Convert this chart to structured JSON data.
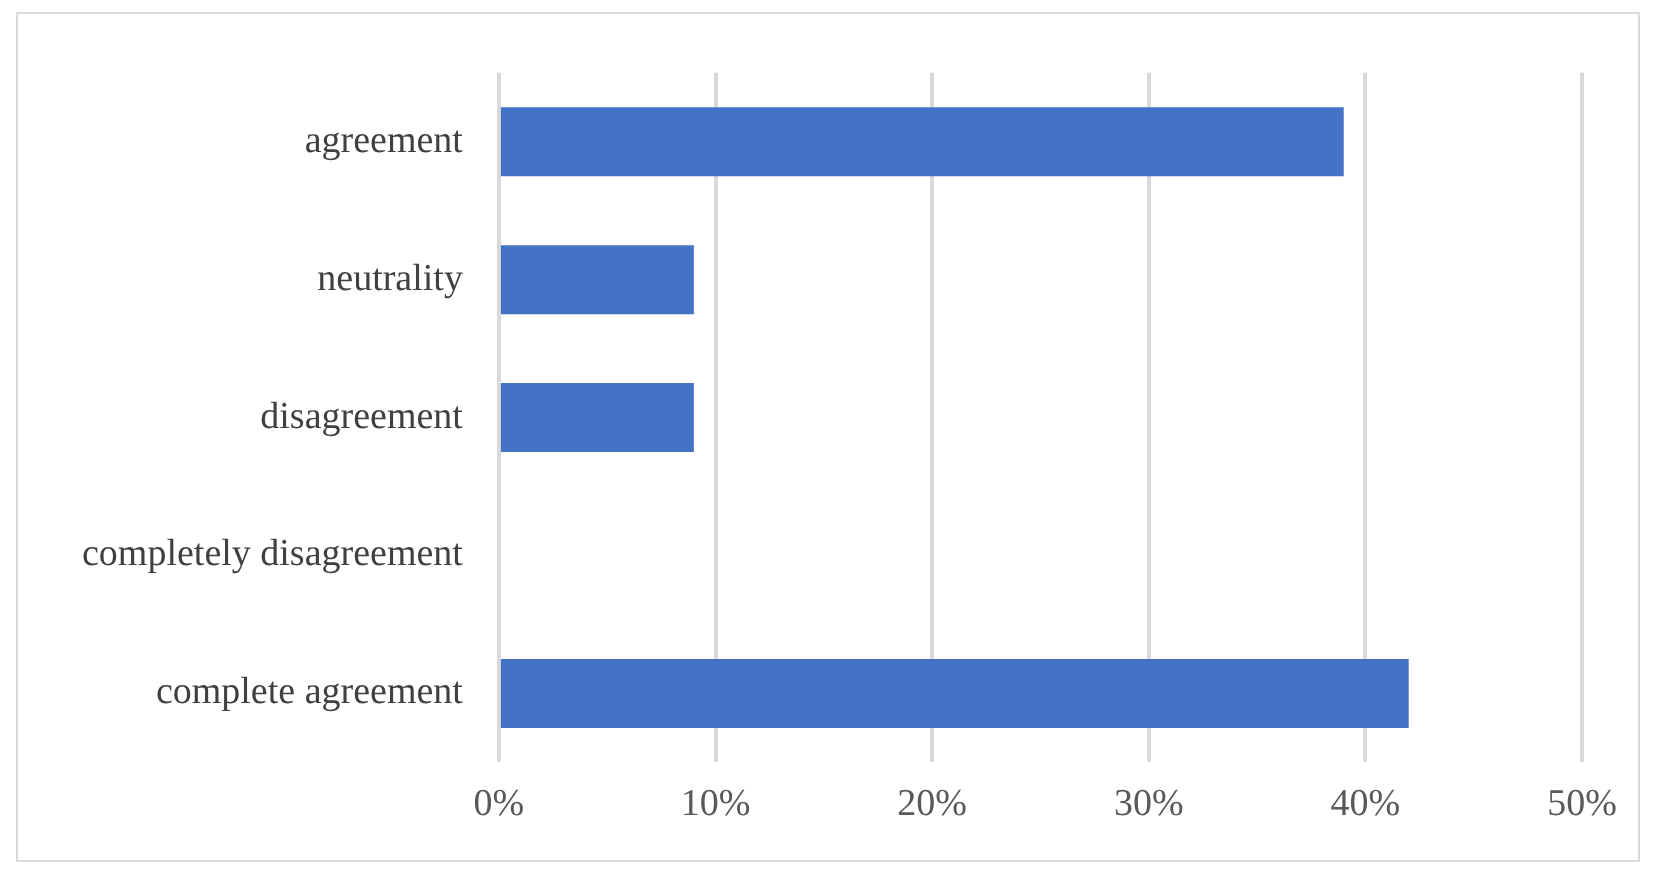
{
  "chart_data": {
    "type": "bar",
    "orientation": "horizontal",
    "categories": [
      "agreement",
      "neutrality",
      "disagreement",
      "completely disagreement",
      "complete agreement"
    ],
    "values": [
      39,
      9,
      9,
      0,
      42
    ],
    "color": "#4472c4",
    "xlim": [
      0,
      50
    ],
    "xticks": [
      {
        "value": 0,
        "label": "0%"
      },
      {
        "value": 10,
        "label": "10%"
      },
      {
        "value": 20,
        "label": "20%"
      },
      {
        "value": 30,
        "label": "30%"
      },
      {
        "value": 40,
        "label": "40%"
      },
      {
        "value": 50,
        "label": "50%"
      }
    ],
    "grid": "x",
    "legend": false
  }
}
